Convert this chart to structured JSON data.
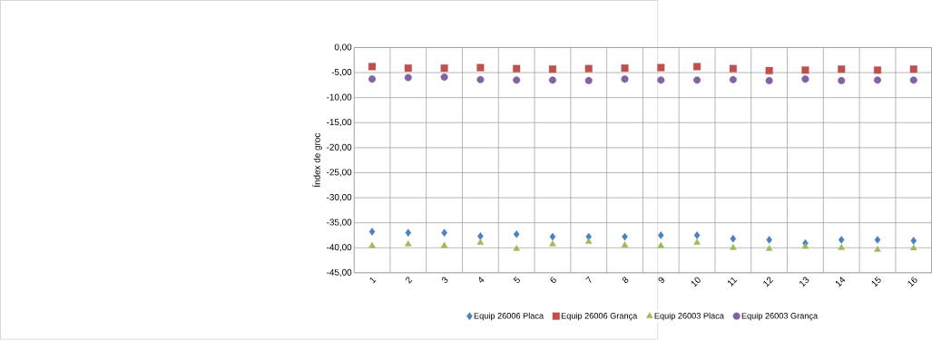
{
  "chart_data": {
    "type": "scatter",
    "ylabel": "Índex de groc",
    "categories": [
      "1",
      "2",
      "3",
      "4",
      "5",
      "6",
      "7",
      "8",
      "9",
      "10",
      "11",
      "12",
      "13",
      "14",
      "15",
      "16"
    ],
    "series": [
      {
        "name": "Equip 26006 Placa",
        "color": "#4f81bd",
        "marker": "diamond",
        "values": [
          -36.8,
          -37.0,
          -37.0,
          -37.7,
          -37.3,
          -37.8,
          -37.8,
          -37.8,
          -37.5,
          -37.5,
          -38.2,
          -38.4,
          -39.1,
          -38.4,
          -38.4,
          -38.6
        ]
      },
      {
        "name": "Equip 26006 Grança",
        "color": "#c0504d",
        "marker": "square",
        "values": [
          -3.8,
          -4.1,
          -4.1,
          -4.0,
          -4.2,
          -4.3,
          -4.2,
          -4.1,
          -4.0,
          -3.8,
          -4.2,
          -4.6,
          -4.5,
          -4.3,
          -4.5,
          -4.3
        ]
      },
      {
        "name": "Equip 26003 Placa",
        "color": "#9bbb59",
        "marker": "triangle",
        "values": [
          -39.6,
          -39.3,
          -39.6,
          -39.0,
          -40.2,
          -39.3,
          -38.8,
          -39.5,
          -39.6,
          -39.0,
          -40.0,
          -40.2,
          -39.8,
          -40.0,
          -40.4,
          -40.1
        ]
      },
      {
        "name": "Equip 26003 Grança",
        "color": "#8064a2",
        "marker": "circle",
        "values": [
          -6.3,
          -6.0,
          -5.9,
          -6.4,
          -6.5,
          -6.5,
          -6.6,
          -6.3,
          -6.5,
          -6.5,
          -6.4,
          -6.6,
          -6.3,
          -6.6,
          -6.5,
          -6.5
        ]
      }
    ],
    "ylim": [
      -45,
      0
    ],
    "yticks": [
      {
        "value": 0,
        "label": "0,00"
      },
      {
        "value": -5,
        "label": "-5,00"
      },
      {
        "value": -10,
        "label": "-10,00"
      },
      {
        "value": -15,
        "label": "-15,00"
      },
      {
        "value": -20,
        "label": "-20,00"
      },
      {
        "value": -25,
        "label": "-25,00"
      },
      {
        "value": -30,
        "label": "-30,00"
      },
      {
        "value": -35,
        "label": "-35,00"
      },
      {
        "value": -40,
        "label": "-40,00"
      },
      {
        "value": -45,
        "label": "-45,00"
      }
    ],
    "grid": true,
    "legend": "bottom"
  }
}
